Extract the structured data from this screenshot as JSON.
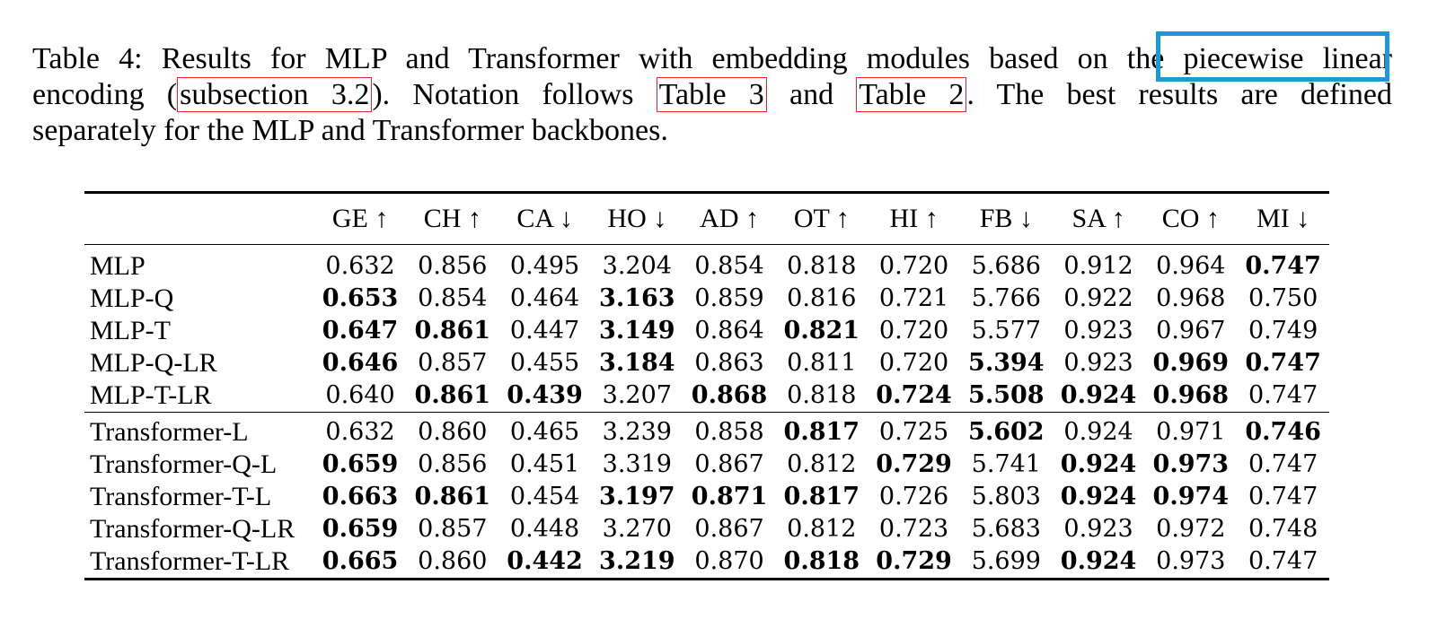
{
  "caption": {
    "line1_a": "Table 4: Results for MLP and Transformer with embedding modules based on the ",
    "line1_highlight": "piecewise linear",
    "line2_a": "encoding (",
    "line2_ref1": "subsection 3.2",
    "line2_b": ").  Notation follows ",
    "line2_ref2": "Table 3",
    "line2_c": " and ",
    "line2_ref3": "Table 2",
    "line2_d": ".  The best results are defined",
    "line3": "separately for the MLP and Transformer backbones."
  },
  "table": {
    "columns": [
      "GE ↑",
      "CH ↑",
      "CA ↓",
      "HO ↓",
      "AD ↑",
      "OT ↑",
      "HI ↑",
      "FB ↓",
      "SA ↑",
      "CO ↑",
      "MI ↓"
    ],
    "groups": [
      {
        "rows": [
          {
            "name": "MLP",
            "values": [
              "0.632",
              "0.856",
              "0.495",
              "3.204",
              "0.854",
              "0.818",
              "0.720",
              "5.686",
              "0.912",
              "0.964",
              "0.747"
            ],
            "bold": [
              false,
              false,
              false,
              false,
              false,
              false,
              false,
              false,
              false,
              false,
              true
            ]
          },
          {
            "name": "MLP-Q",
            "values": [
              "0.653",
              "0.854",
              "0.464",
              "3.163",
              "0.859",
              "0.816",
              "0.721",
              "5.766",
              "0.922",
              "0.968",
              "0.750"
            ],
            "bold": [
              true,
              false,
              false,
              true,
              false,
              false,
              false,
              false,
              false,
              false,
              false
            ]
          },
          {
            "name": "MLP-T",
            "values": [
              "0.647",
              "0.861",
              "0.447",
              "3.149",
              "0.864",
              "0.821",
              "0.720",
              "5.577",
              "0.923",
              "0.967",
              "0.749"
            ],
            "bold": [
              true,
              true,
              false,
              true,
              false,
              true,
              false,
              false,
              false,
              false,
              false
            ]
          },
          {
            "name": "MLP-Q-LR",
            "values": [
              "0.646",
              "0.857",
              "0.455",
              "3.184",
              "0.863",
              "0.811",
              "0.720",
              "5.394",
              "0.923",
              "0.969",
              "0.747"
            ],
            "bold": [
              true,
              false,
              false,
              true,
              false,
              false,
              false,
              true,
              false,
              true,
              true
            ]
          },
          {
            "name": "MLP-T-LR",
            "values": [
              "0.640",
              "0.861",
              "0.439",
              "3.207",
              "0.868",
              "0.818",
              "0.724",
              "5.508",
              "0.924",
              "0.968",
              "0.747"
            ],
            "bold": [
              false,
              true,
              true,
              false,
              true,
              false,
              true,
              true,
              true,
              true,
              false
            ]
          }
        ]
      },
      {
        "rows": [
          {
            "name": "Transformer-L",
            "values": [
              "0.632",
              "0.860",
              "0.465",
              "3.239",
              "0.858",
              "0.817",
              "0.725",
              "5.602",
              "0.924",
              "0.971",
              "0.746"
            ],
            "bold": [
              false,
              false,
              false,
              false,
              false,
              true,
              false,
              true,
              false,
              false,
              true
            ]
          },
          {
            "name": "Transformer-Q-L",
            "values": [
              "0.659",
              "0.856",
              "0.451",
              "3.319",
              "0.867",
              "0.812",
              "0.729",
              "5.741",
              "0.924",
              "0.973",
              "0.747"
            ],
            "bold": [
              true,
              false,
              false,
              false,
              false,
              false,
              true,
              false,
              true,
              true,
              false
            ]
          },
          {
            "name": "Transformer-T-L",
            "values": [
              "0.663",
              "0.861",
              "0.454",
              "3.197",
              "0.871",
              "0.817",
              "0.726",
              "5.803",
              "0.924",
              "0.974",
              "0.747"
            ],
            "bold": [
              true,
              true,
              false,
              true,
              true,
              true,
              false,
              false,
              true,
              true,
              false
            ]
          },
          {
            "name": "Transformer-Q-LR",
            "values": [
              "0.659",
              "0.857",
              "0.448",
              "3.270",
              "0.867",
              "0.812",
              "0.723",
              "5.683",
              "0.923",
              "0.972",
              "0.748"
            ],
            "bold": [
              true,
              false,
              false,
              false,
              false,
              false,
              false,
              false,
              false,
              false,
              false
            ]
          },
          {
            "name": "Transformer-T-LR",
            "values": [
              "0.665",
              "0.860",
              "0.442",
              "3.219",
              "0.870",
              "0.818",
              "0.729",
              "5.699",
              "0.924",
              "0.973",
              "0.747"
            ],
            "bold": [
              true,
              false,
              true,
              true,
              false,
              true,
              true,
              false,
              true,
              false,
              false
            ]
          }
        ]
      }
    ]
  },
  "colors": {
    "ref_box": "#e8262a",
    "highlight_box": "#1a9ad6"
  }
}
